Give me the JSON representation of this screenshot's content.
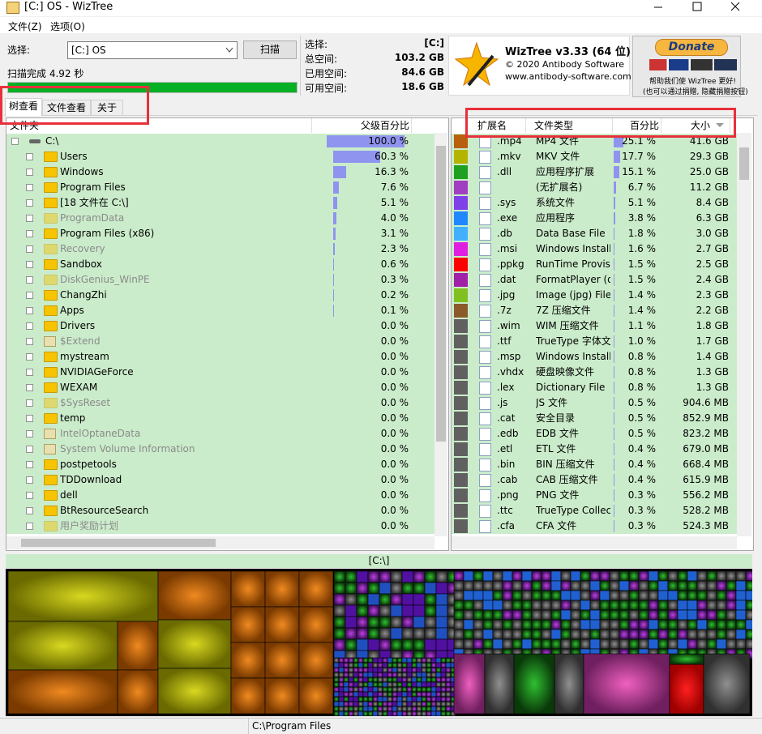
{
  "window": {
    "title": "[C:] OS  - WizTree"
  },
  "menu": [
    "文件(Z)",
    "选项(O)"
  ],
  "scan": {
    "label": "选择:",
    "drive": "[C:] OS",
    "button": "扫描",
    "status": "扫描完成 4.92 秒"
  },
  "stats": [
    [
      "选择:",
      "[C:]"
    ],
    [
      "总空间:",
      "103.2 GB"
    ],
    [
      "已用空间:",
      "84.6 GB"
    ],
    [
      "可用空间:",
      "18.6 GB"
    ]
  ],
  "about": {
    "title": "WizTree v3.33 (64 位)",
    "copyright": "© 2020 Antibody Software",
    "url": "www.antibody-software.com"
  },
  "donate": {
    "button": "Donate",
    "note1": "帮助我们使 WizTree 更好!",
    "note2": "(也可以通过捐赠, 隐藏捐赠按钮)"
  },
  "tabs": [
    "树查看",
    "文件查看",
    "关于"
  ],
  "tree": {
    "headers": [
      "文件夹",
      "父级百分比"
    ],
    "rows": [
      {
        "name": "C:\\",
        "pct": 100.0,
        "label": "100.0 %"
      },
      {
        "name": "Users",
        "pct": 60.3,
        "label": "60.3 %"
      },
      {
        "name": "Windows",
        "pct": 16.3,
        "label": "16.3 %"
      },
      {
        "name": "Program Files",
        "pct": 7.6,
        "label": "7.6 %"
      },
      {
        "name": "[18 文件在 C:\\]",
        "pct": 5.1,
        "label": "5.1 %"
      },
      {
        "name": "ProgramData",
        "pct": 4.0,
        "label": "4.0 %",
        "hidden": true
      },
      {
        "name": "Program Files (x86)",
        "pct": 3.1,
        "label": "3.1 %"
      },
      {
        "name": "Recovery",
        "pct": 2.3,
        "label": "2.3 %",
        "hidden": true
      },
      {
        "name": "Sandbox",
        "pct": 0.6,
        "label": "0.6 %"
      },
      {
        "name": "DiskGenius_WinPE",
        "pct": 0.3,
        "label": "0.3 %",
        "hidden": true
      },
      {
        "name": "ChangZhi",
        "pct": 0.2,
        "label": "0.2 %"
      },
      {
        "name": "Apps",
        "pct": 0.1,
        "label": "0.1 %"
      },
      {
        "name": "Drivers",
        "pct": 0.0,
        "label": "0.0 %"
      },
      {
        "name": "$Extend",
        "pct": 0.0,
        "label": "0.0 %",
        "hidden": true,
        "system": true
      },
      {
        "name": "mystream",
        "pct": 0.0,
        "label": "0.0 %"
      },
      {
        "name": "NVIDIAGeForce",
        "pct": 0.0,
        "label": "0.0 %"
      },
      {
        "name": "WEXAM",
        "pct": 0.0,
        "label": "0.0 %"
      },
      {
        "name": "$SysReset",
        "pct": 0.0,
        "label": "0.0 %",
        "hidden": true
      },
      {
        "name": "temp",
        "pct": 0.0,
        "label": "0.0 %"
      },
      {
        "name": "IntelOptaneData",
        "pct": 0.0,
        "label": "0.0 %",
        "hidden": true,
        "system": true
      },
      {
        "name": "System Volume Information",
        "pct": 0.0,
        "label": "0.0 %",
        "hidden": true,
        "system": true
      },
      {
        "name": "postpetools",
        "pct": 0.0,
        "label": "0.0 %"
      },
      {
        "name": "TDDownload",
        "pct": 0.0,
        "label": "0.0 %"
      },
      {
        "name": "dell",
        "pct": 0.0,
        "label": "0.0 %"
      },
      {
        "name": "BtResourceSearch",
        "pct": 0.0,
        "label": "0.0 %"
      },
      {
        "name": "用户奖励计划",
        "pct": 0.0,
        "label": "0.0 %",
        "hidden": true
      }
    ]
  },
  "ext_table": {
    "headers": [
      "扩展名",
      "文件类型",
      "百分比",
      "大小"
    ],
    "rows": [
      {
        "ext": ".mp4",
        "type": "MP4 文件",
        "pct": 25.1,
        "label": "25.1 %",
        "size": "41.6 GB",
        "color": "#b8600c"
      },
      {
        "ext": ".mkv",
        "type": "MKV 文件",
        "pct": 17.7,
        "label": "17.7 %",
        "size": "29.3 GB",
        "color": "#b4b400"
      },
      {
        "ext": ".dll",
        "type": "应用程序扩展",
        "pct": 15.1,
        "label": "15.1 %",
        "size": "25.0 GB",
        "color": "#20a020"
      },
      {
        "ext": null,
        "type": "(无扩展名)",
        "pct": 6.7,
        "label": "6.7 %",
        "size": "11.2 GB",
        "color": "#a040c0"
      },
      {
        "ext": ".sys",
        "type": "系统文件",
        "pct": 5.1,
        "label": "5.1 %",
        "size": "8.4 GB",
        "color": "#8040e8"
      },
      {
        "ext": ".exe",
        "type": "应用程序",
        "pct": 3.8,
        "label": "3.8 %",
        "size": "6.3 GB",
        "color": "#2088ff"
      },
      {
        "ext": ".db",
        "type": "Data Base File",
        "pct": 1.8,
        "label": "1.8 %",
        "size": "3.0 GB",
        "color": "#40b0ff"
      },
      {
        "ext": ".msi",
        "type": "Windows Installer",
        "pct": 1.6,
        "label": "1.6 %",
        "size": "2.7 GB",
        "color": "#e020e0"
      },
      {
        "ext": ".ppkg",
        "type": "RunTime Provisioni",
        "pct": 1.5,
        "label": "1.5 %",
        "size": "2.5 GB",
        "color": "#ff0000"
      },
      {
        "ext": ".dat",
        "type": "FormatPlayer (dat)",
        "pct": 1.5,
        "label": "1.5 %",
        "size": "2.4 GB",
        "color": "#a020a8"
      },
      {
        "ext": ".jpg",
        "type": "Image (jpg) File",
        "pct": 1.4,
        "label": "1.4 %",
        "size": "2.3 GB",
        "color": "#80c020"
      },
      {
        "ext": ".7z",
        "type": "7Z 压缩文件",
        "pct": 1.4,
        "label": "1.4 %",
        "size": "2.2 GB",
        "color": "#8b5a2b"
      },
      {
        "ext": ".wim",
        "type": "WIM 压缩文件",
        "pct": 1.1,
        "label": "1.1 %",
        "size": "1.8 GB",
        "color": "#606060"
      },
      {
        "ext": ".ttf",
        "type": "TrueType 字体文(",
        "pct": 1.0,
        "label": "1.0 %",
        "size": "1.7 GB",
        "color": "#606060"
      },
      {
        "ext": ".msp",
        "type": "Windows Installer",
        "pct": 0.8,
        "label": "0.8 %",
        "size": "1.4 GB",
        "color": "#606060"
      },
      {
        "ext": ".vhdx",
        "type": "硬盘映像文件",
        "pct": 0.8,
        "label": "0.8 %",
        "size": "1.3 GB",
        "color": "#606060"
      },
      {
        "ext": ".lex",
        "type": "Dictionary File",
        "pct": 0.8,
        "label": "0.8 %",
        "size": "1.3 GB",
        "color": "#606060"
      },
      {
        "ext": ".js",
        "type": "JS 文件",
        "pct": 0.5,
        "label": "0.5 %",
        "size": "904.6 MB",
        "color": "#606060"
      },
      {
        "ext": ".cat",
        "type": "安全目录",
        "pct": 0.5,
        "label": "0.5 %",
        "size": "852.9 MB",
        "color": "#606060"
      },
      {
        "ext": ".edb",
        "type": "EDB 文件",
        "pct": 0.5,
        "label": "0.5 %",
        "size": "823.2 MB",
        "color": "#606060"
      },
      {
        "ext": ".etl",
        "type": "ETL 文件",
        "pct": 0.4,
        "label": "0.4 %",
        "size": "679.0 MB",
        "color": "#606060"
      },
      {
        "ext": ".bin",
        "type": "BIN 压缩文件",
        "pct": 0.4,
        "label": "0.4 %",
        "size": "668.4 MB",
        "color": "#606060"
      },
      {
        "ext": ".cab",
        "type": "CAB 压缩文件",
        "pct": 0.4,
        "label": "0.4 %",
        "size": "615.9 MB",
        "color": "#606060"
      },
      {
        "ext": ".png",
        "type": "PNG 文件",
        "pct": 0.3,
        "label": "0.3 %",
        "size": "556.2 MB",
        "color": "#606060"
      },
      {
        "ext": ".ttc",
        "type": "TrueType Collectio",
        "pct": 0.3,
        "label": "0.3 %",
        "size": "528.2 MB",
        "color": "#606060"
      },
      {
        "ext": ".cfa",
        "type": "CFA 文件",
        "pct": 0.3,
        "label": "0.3 %",
        "size": "524.3 MB",
        "color": "#606060"
      }
    ]
  },
  "treemap": {
    "title": "[C:\\]"
  },
  "status": "C:\\Program Files"
}
